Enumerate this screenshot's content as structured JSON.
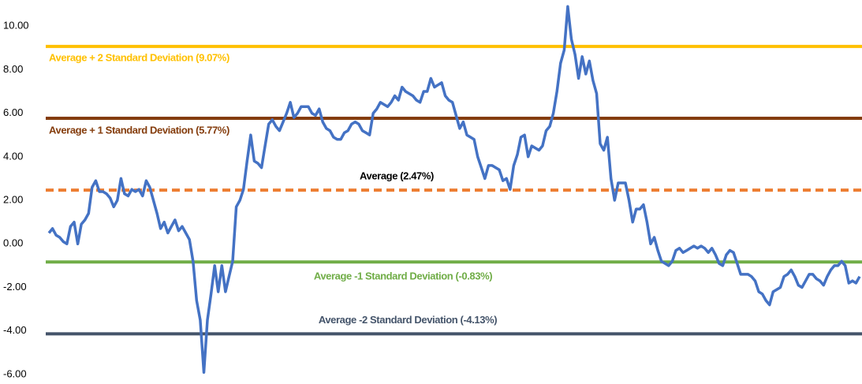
{
  "chart_data": {
    "type": "line",
    "series": [
      {
        "name": null,
        "color": "#4472c4",
        "values": [
          0.5,
          0.7,
          0.4,
          0.3,
          0.1,
          0.0,
          0.8,
          1.0,
          0.0,
          0.9,
          1.1,
          1.4,
          2.6,
          2.9,
          2.4,
          2.4,
          2.3,
          2.1,
          1.7,
          2.0,
          3.0,
          2.3,
          2.2,
          2.5,
          2.4,
          2.5,
          2.2,
          2.9,
          2.6,
          2.0,
          1.4,
          0.7,
          1.0,
          0.5,
          0.8,
          1.1,
          0.6,
          0.8,
          0.5,
          0.2,
          -0.8,
          -2.6,
          -3.5,
          -5.9,
          -3.5,
          -2.3,
          -1.0,
          -2.2,
          -1.0,
          -2.2,
          -1.5,
          -0.8,
          1.7,
          2.0,
          2.5,
          3.8,
          5.0,
          3.8,
          3.7,
          3.5,
          4.5,
          5.5,
          5.7,
          5.4,
          5.2,
          5.6,
          6.0,
          6.5,
          5.8,
          6.0,
          6.3,
          6.3,
          6.3,
          6.0,
          5.9,
          6.2,
          5.6,
          5.3,
          5.2,
          4.9,
          4.8,
          4.8,
          5.1,
          5.2,
          5.5,
          5.6,
          5.5,
          5.2,
          5.1,
          5.0,
          6.0,
          6.2,
          6.5,
          6.4,
          6.3,
          6.5,
          6.8,
          6.6,
          7.2,
          7.0,
          6.9,
          6.8,
          6.6,
          6.5,
          7.0,
          7.0,
          7.6,
          7.2,
          7.3,
          7.4,
          6.8,
          6.6,
          6.5,
          5.9,
          5.3,
          5.6,
          5.0,
          4.9,
          4.8,
          4.0,
          3.5,
          3.0,
          3.6,
          3.6,
          3.5,
          3.4,
          2.9,
          3.0,
          2.5,
          3.6,
          4.1,
          4.9,
          5.0,
          4.0,
          4.5,
          4.4,
          4.3,
          4.5,
          5.2,
          5.4,
          6.0,
          7.0,
          8.3,
          8.9,
          10.9,
          9.4,
          8.7,
          7.6,
          8.6,
          7.8,
          8.4,
          7.5,
          6.9,
          4.6,
          4.3,
          4.9,
          3.0,
          2.0,
          2.8,
          2.8,
          2.8,
          2.0,
          1.0,
          1.6,
          1.6,
          1.8,
          1.0,
          0.0,
          0.3,
          -0.3,
          -0.8,
          -0.9,
          -1.0,
          -0.8,
          -0.3,
          -0.2,
          -0.4,
          -0.3,
          -0.2,
          -0.1,
          -0.2,
          -0.1,
          -0.2,
          -0.4,
          -0.2,
          -0.5,
          -0.9,
          -1.0,
          -0.5,
          -0.3,
          -0.4,
          -0.9,
          -1.4,
          -1.4,
          -1.4,
          -1.5,
          -1.7,
          -2.2,
          -2.3,
          -2.6,
          -2.8,
          -2.2,
          -2.1,
          -2.0,
          -1.5,
          -1.4,
          -1.2,
          -1.5,
          -1.9,
          -2.0,
          -1.7,
          -1.4,
          -1.4,
          -1.6,
          -1.7,
          -1.9,
          -1.5,
          -1.2,
          -1.0,
          -1.0,
          -0.8,
          -1.0,
          -1.8,
          -1.7,
          -1.8,
          -1.5
        ]
      }
    ],
    "reference_lines": [
      {
        "label": "Average + 2 Standard Deviation (9.07%)",
        "value": 9.07,
        "color": "#ffc000",
        "dashed": false
      },
      {
        "label": "Average + 1 Standard Deviation (5.77%)",
        "value": 5.77,
        "color": "#843c0c",
        "dashed": false
      },
      {
        "label": "Average (2.47%)",
        "value": 2.47,
        "color": "#ed7d31",
        "dashed": true
      },
      {
        "label": "Average -1 Standard Deviation (-0.83%)",
        "value": -0.83,
        "color": "#70ad47",
        "dashed": false
      },
      {
        "label": "Average -2 Standard Deviation (-4.13%)",
        "value": -4.13,
        "color": "#44546a",
        "dashed": false
      }
    ],
    "ylim": [
      -6.4,
      11.2
    ],
    "yticks": [
      {
        "value": -6,
        "label": "-6.00"
      },
      {
        "value": -4,
        "label": "-4.00"
      },
      {
        "value": -2,
        "label": "-2.00"
      },
      {
        "value": 0,
        "label": "0.00"
      },
      {
        "value": 2,
        "label": "2.00"
      },
      {
        "value": 4,
        "label": "4.00"
      },
      {
        "value": 6,
        "label": "6.00"
      },
      {
        "value": 8,
        "label": "8.00"
      },
      {
        "value": 10,
        "label": "10.00"
      }
    ],
    "grid": false
  }
}
